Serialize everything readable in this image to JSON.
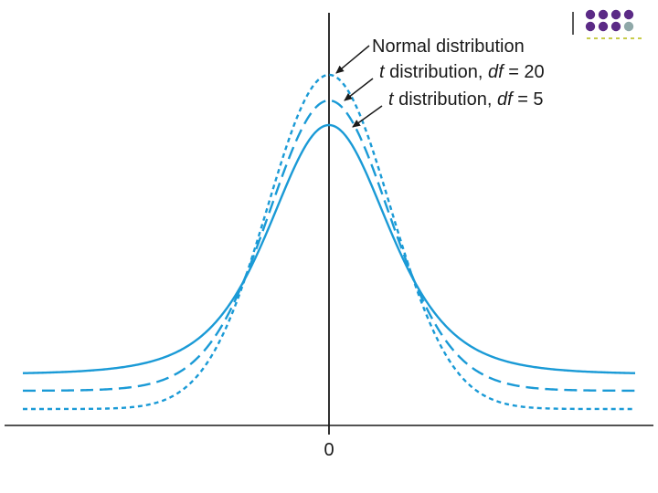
{
  "figure": {
    "curves": [
      {
        "name_prefix": "Normal distribution",
        "name_italic": "",
        "name_suffix": "",
        "style": "dotted",
        "peak": 0.3989,
        "tail": 0.0
      },
      {
        "name_prefix": "",
        "name_italic": "t",
        "name_suffix": " distribution, ",
        "df_label": "df",
        "df_eq": " = 20",
        "style": "dashed",
        "peak": 0.394,
        "tail": 0.0
      },
      {
        "name_prefix": "",
        "name_italic": "t",
        "name_suffix": " distribution, ",
        "df_label": "df",
        "df_eq": " = 5",
        "style": "solid",
        "peak": 0.3796,
        "tail": 0.0
      }
    ],
    "x_tick_label": "0",
    "color": "#1a9ad6",
    "axis_color": "#1a1a1a"
  },
  "decoration": {
    "dot_colors": [
      "#5b2a86",
      "#5b2a86",
      "#5b2a86",
      "#5b2a86",
      "#8fa8a8"
    ]
  }
}
